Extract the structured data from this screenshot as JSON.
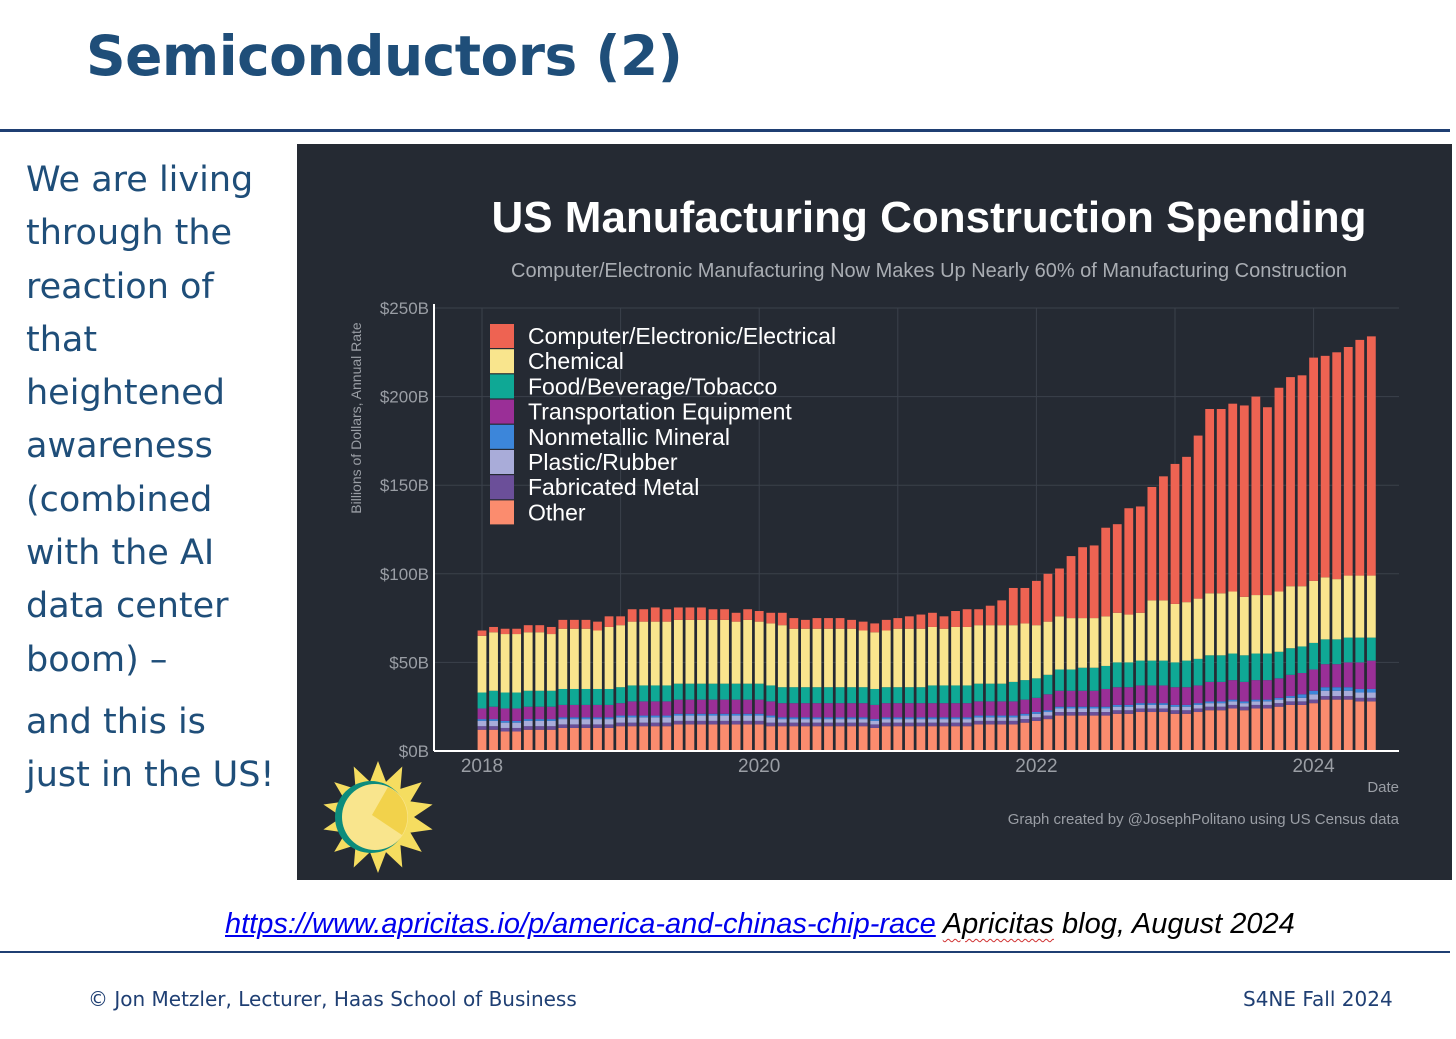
{
  "slide": {
    "title": "Semiconductors (2)",
    "body_lines": [
      "We are living",
      "through the",
      "reaction of",
      "that",
      "heightened",
      "awareness",
      "(combined",
      "with the AI",
      "data center",
      "boom) –"
    ],
    "body_lines_2": [
      "and this is",
      "just in the US!"
    ]
  },
  "source": {
    "url": "https://www.apricitas.io/p/america-and-chinas-chip-race",
    "blog_name": "Apricitas",
    "suffix": " blog, August 2024"
  },
  "footer": {
    "left": "© Jon Metzler, Lecturer, Haas School of Business",
    "right": "S4NE Fall 2024"
  },
  "colors": {
    "title": "#1f4e79",
    "panel_background": "#252a33",
    "link": "#0000ee"
  },
  "chart_data": {
    "type": "bar",
    "stacked": true,
    "title": "US Manufacturing Construction Spending",
    "subtitle": "Computer/Electronic Manufacturing Now Makes Up Nearly 60% of Manufacturing Construction",
    "xlabel": "Date",
    "ylabel": "Billions of Dollars, Annual Rate",
    "ylim": [
      0,
      250
    ],
    "y_ticks": [
      0,
      50,
      100,
      150,
      200,
      250
    ],
    "y_tick_labels": [
      "$0B",
      "$50B",
      "$100B",
      "$150B",
      "$200B",
      "$250B"
    ],
    "x_ticks": [
      "2018",
      "2020",
      "2022",
      "2024"
    ],
    "x_start": "2018-01",
    "x_end": "2024-06",
    "frequency": "monthly",
    "legend_position": "top-left",
    "grid": true,
    "credit": "Graph created by @JosephPolitano using US Census data",
    "series_order": [
      "Other",
      "Fabricated Metal",
      "Plastic/Rubber",
      "Nonmetallic Mineral",
      "Transportation Equipment",
      "Food/Beverage/Tobacco",
      "Chemical",
      "Computer/Electronic/Electrical"
    ],
    "legend_order": [
      "Computer/Electronic/Electrical",
      "Chemical",
      "Food/Beverage/Tobacco",
      "Transportation Equipment",
      "Nonmetallic Mineral",
      "Plastic/Rubber",
      "Fabricated Metal",
      "Other"
    ],
    "series_colors": {
      "Computer/Electronic/Electrical": "#ee6352",
      "Chemical": "#f9e58d",
      "Food/Beverage/Tobacco": "#0fa895",
      "Transportation Equipment": "#9a2f97",
      "Nonmetallic Mineral": "#3c86da",
      "Plastic/Rubber": "#a9acd9",
      "Fabricated Metal": "#6b4f99",
      "Other": "#fb8c6e"
    },
    "totals": [
      68,
      70,
      69,
      69,
      71,
      71,
      70,
      74,
      74,
      74,
      73,
      76,
      76,
      80,
      80,
      81,
      80,
      81,
      81,
      81,
      80,
      80,
      78,
      80,
      79,
      78,
      78,
      75,
      74,
      75,
      75,
      75,
      74,
      73,
      72,
      74,
      75,
      76,
      77,
      78,
      76,
      79,
      80,
      80,
      82,
      85,
      92,
      92,
      97,
      100,
      103,
      110,
      115,
      116,
      126,
      128,
      137,
      138,
      149,
      155,
      162,
      166,
      178,
      193,
      193,
      196,
      195,
      200,
      193,
      205,
      211,
      212,
      222,
      223,
      225,
      230,
      234,
      234
    ],
    "series": [
      {
        "name": "Other",
        "values": [
          12,
          12,
          11,
          11,
          12,
          12,
          12,
          13,
          13,
          13,
          13,
          13,
          14,
          14,
          14,
          14,
          14,
          15,
          15,
          15,
          15,
          15,
          15,
          15,
          15,
          14,
          14,
          14,
          14,
          14,
          14,
          14,
          14,
          14,
          13,
          14,
          14,
          14,
          14,
          14,
          14,
          14,
          14,
          15,
          15,
          15,
          15,
          16,
          17,
          18,
          20,
          20,
          20,
          20,
          20,
          21,
          21,
          22,
          22,
          22,
          21,
          21,
          22,
          23,
          23,
          24,
          23,
          24,
          24,
          25,
          26,
          26,
          27,
          29,
          29,
          29,
          28,
          28
        ]
      },
      {
        "name": "Fabricated Metal",
        "values": [
          2,
          2,
          2,
          2,
          2,
          2,
          2,
          2,
          2,
          2,
          2,
          2,
          2,
          2,
          2,
          2,
          2,
          2,
          2,
          2,
          2,
          2,
          2,
          2,
          2,
          2,
          2,
          2,
          2,
          2,
          2,
          2,
          2,
          2,
          2,
          2,
          2,
          2,
          2,
          2,
          2,
          2,
          2,
          2,
          2,
          2,
          2,
          2,
          2,
          2,
          2,
          2,
          2,
          2,
          2,
          2,
          2,
          2,
          2,
          2,
          2,
          2,
          2,
          2,
          2,
          2,
          2,
          2,
          2,
          2,
          2,
          2,
          2,
          2,
          2,
          2,
          2,
          2
        ]
      },
      {
        "name": "Plastic/Rubber",
        "values": [
          3,
          3,
          3,
          3,
          3,
          3,
          3,
          3,
          3,
          3,
          3,
          3,
          3,
          3,
          3,
          3,
          3,
          3,
          3,
          3,
          3,
          3,
          3,
          3,
          3,
          3,
          2,
          2,
          2,
          2,
          2,
          2,
          2,
          2,
          2,
          2,
          2,
          2,
          2,
          2,
          2,
          2,
          2,
          2,
          2,
          2,
          2,
          2,
          2,
          2,
          2,
          2,
          2,
          2,
          2,
          2,
          2,
          2,
          2,
          2,
          2,
          2,
          2,
          2,
          2,
          2,
          2,
          2,
          2,
          2,
          2,
          2,
          3,
          3,
          3,
          3,
          3,
          3
        ]
      },
      {
        "name": "Nonmetallic Mineral",
        "values": [
          1,
          1,
          1,
          1,
          1,
          1,
          1,
          1,
          1,
          1,
          1,
          1,
          1,
          1,
          1,
          1,
          1,
          1,
          1,
          1,
          1,
          1,
          1,
          1,
          1,
          1,
          1,
          1,
          1,
          1,
          1,
          1,
          1,
          1,
          1,
          1,
          1,
          1,
          1,
          1,
          1,
          1,
          1,
          1,
          1,
          1,
          1,
          1,
          1,
          1,
          1,
          1,
          1,
          1,
          1,
          1,
          1,
          1,
          1,
          1,
          1,
          1,
          1,
          1,
          1,
          1,
          1,
          1,
          1,
          1,
          1,
          2,
          2,
          2,
          2,
          2,
          2,
          2
        ]
      },
      {
        "name": "Transportation Equipment",
        "values": [
          6,
          7,
          7,
          7,
          7,
          7,
          7,
          7,
          7,
          7,
          7,
          7,
          7,
          8,
          8,
          8,
          8,
          8,
          8,
          8,
          8,
          8,
          8,
          8,
          8,
          8,
          8,
          8,
          8,
          8,
          8,
          8,
          8,
          8,
          8,
          8,
          8,
          8,
          8,
          8,
          8,
          8,
          8,
          8,
          8,
          8,
          8,
          8,
          8,
          9,
          9,
          9,
          9,
          9,
          10,
          10,
          10,
          10,
          10,
          10,
          10,
          10,
          10,
          11,
          11,
          11,
          11,
          11,
          11,
          11,
          12,
          12,
          12,
          13,
          13,
          14,
          15,
          16
        ]
      },
      {
        "name": "Food/Beverage/Tobacco",
        "values": [
          9,
          9,
          9,
          9,
          9,
          9,
          9,
          9,
          9,
          9,
          9,
          9,
          9,
          9,
          9,
          9,
          9,
          9,
          9,
          9,
          9,
          9,
          9,
          9,
          9,
          9,
          9,
          9,
          9,
          9,
          9,
          9,
          9,
          9,
          9,
          9,
          9,
          9,
          9,
          10,
          10,
          10,
          10,
          10,
          10,
          10,
          11,
          11,
          11,
          11,
          12,
          12,
          13,
          13,
          13,
          14,
          14,
          14,
          14,
          14,
          14,
          15,
          15,
          15,
          15,
          15,
          15,
          15,
          15,
          15,
          15,
          15,
          15,
          14,
          14,
          14,
          14,
          13
        ]
      },
      {
        "name": "Chemical",
        "values": [
          32,
          33,
          33,
          33,
          33,
          33,
          32,
          34,
          34,
          34,
          33,
          35,
          35,
          36,
          36,
          36,
          36,
          36,
          36,
          36,
          36,
          36,
          35,
          36,
          35,
          35,
          35,
          33,
          33,
          33,
          33,
          33,
          33,
          32,
          32,
          32,
          33,
          33,
          33,
          33,
          32,
          33,
          33,
          33,
          33,
          33,
          32,
          32,
          30,
          30,
          30,
          29,
          28,
          28,
          28,
          28,
          27,
          27,
          34,
          34,
          33,
          33,
          34,
          35,
          35,
          35,
          33,
          33,
          33,
          34,
          35,
          34,
          35,
          35,
          34,
          35,
          35,
          35
        ]
      },
      {
        "name": "Computer/Electronic/Electrical",
        "values": [
          3,
          3,
          3,
          3,
          4,
          4,
          4,
          5,
          5,
          5,
          5,
          6,
          5,
          7,
          7,
          8,
          7,
          7,
          7,
          7,
          6,
          6,
          5,
          6,
          6,
          6,
          7,
          6,
          5,
          6,
          6,
          6,
          5,
          5,
          5,
          6,
          6,
          7,
          8,
          8,
          7,
          9,
          10,
          9,
          11,
          14,
          21,
          20,
          25,
          27,
          27,
          35,
          40,
          41,
          50,
          50,
          60,
          60,
          64,
          70,
          79,
          82,
          92,
          104,
          104,
          106,
          108,
          112,
          106,
          115,
          118,
          119,
          126,
          125,
          128,
          129,
          133,
          135
        ]
      }
    ]
  }
}
